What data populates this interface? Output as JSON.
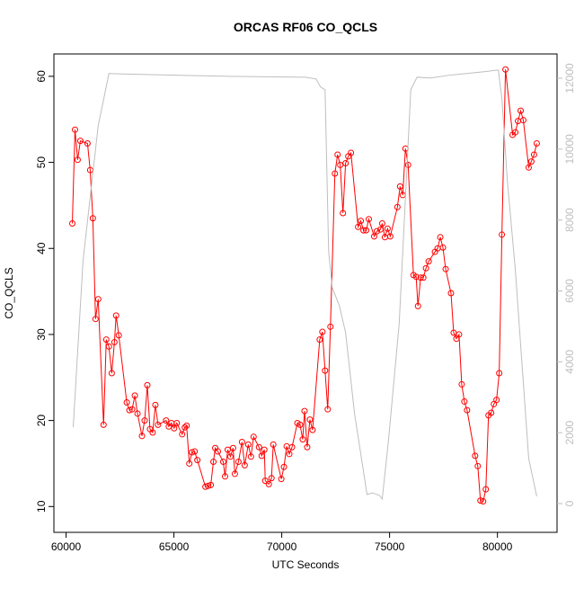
{
  "chart_data": {
    "type": "line",
    "title": "ORCAS RF06 CO_QCLS",
    "x_label": "UTC Seconds",
    "y_label": "CO_QCLS",
    "xlim": [
      59436,
      82764
    ],
    "xticks": [
      60000,
      65000,
      70000,
      75000,
      80000
    ],
    "ylim": [
      7,
      62.6
    ],
    "yticks": [
      10,
      20,
      30,
      40,
      50,
      60
    ],
    "y2lim": [
      -812,
      12685
    ],
    "y2ticks": [
      0,
      2000,
      4000,
      6000,
      8000,
      10000,
      12000
    ],
    "series": [
      {
        "color": "#ff0000",
        "markers": true,
        "axis": "y",
        "x": [
          60290,
          60414,
          60538,
          60662,
          60994,
          61118,
          61242,
          61366,
          61490,
          61739,
          61863,
          61987,
          62118,
          62242,
          62320,
          62443,
          62815,
          62940,
          63064,
          63188,
          63312,
          63519,
          63643,
          63767,
          63891,
          64016,
          64140,
          64264,
          64637,
          64761,
          64885,
          65009,
          65134,
          65382,
          65507,
          65590,
          65714,
          65838,
          65962,
          66087,
          66459,
          66584,
          66708,
          66832,
          66915,
          67039,
          67288,
          67371,
          67495,
          67619,
          67743,
          67826,
          67992,
          68157,
          68282,
          68447,
          68572,
          68696,
          68945,
          69069,
          69193,
          69235,
          69400,
          69524,
          69607,
          69979,
          70103,
          70227,
          70352,
          70476,
          70725,
          70849,
          70973,
          71056,
          71180,
          71305,
          71429,
          71760,
          71884,
          72008,
          72132,
          72257,
          72464,
          72588,
          72712,
          72837,
          72961,
          73085,
          73209,
          73540,
          73665,
          73789,
          73913,
          74037,
          74286,
          74410,
          74575,
          74658,
          74782,
          74907,
          75031,
          75362,
          75486,
          75610,
          75735,
          75859,
          76107,
          76232,
          76315,
          76439,
          76563,
          76687,
          76812,
          77102,
          77226,
          77350,
          77474,
          77599,
          77847,
          77971,
          78095,
          78220,
          78344,
          78468,
          78592,
          78965,
          79089,
          79213,
          79338,
          79462,
          79586,
          79710,
          79834,
          79959,
          80083,
          80207,
          80373,
          80704,
          80829,
          80953,
          81077,
          81201,
          81450,
          81574,
          81698,
          81822
        ],
        "values": [
          42.9,
          53.8,
          50.3,
          52.5,
          52.2,
          49.1,
          43.5,
          31.8,
          34.1,
          19.5,
          29.4,
          28.6,
          25.5,
          29.1,
          32.2,
          29.9,
          22.1,
          21.2,
          21.3,
          22.9,
          20.8,
          18.2,
          20.0,
          24.1,
          19.0,
          18.6,
          21.8,
          19.5,
          20.0,
          19.3,
          19.7,
          19.1,
          19.7,
          18.4,
          19.2,
          19.4,
          15.0,
          16.3,
          16.4,
          15.4,
          12.3,
          12.4,
          12.5,
          15.2,
          16.8,
          16.4,
          15.2,
          13.5,
          16.6,
          15.8,
          16.8,
          13.8,
          15.2,
          17.5,
          14.8,
          17.2,
          15.8,
          18.1,
          16.9,
          15.9,
          16.6,
          13.0,
          12.6,
          13.3,
          17.2,
          13.2,
          14.6,
          17.0,
          16.1,
          16.9,
          19.7,
          19.5,
          17.8,
          21.1,
          16.9,
          20.1,
          18.9,
          29.4,
          30.3,
          25.8,
          21.3,
          30.9,
          48.7,
          50.9,
          49.7,
          44.1,
          49.9,
          50.7,
          51.1,
          42.5,
          43.2,
          42.1,
          42.1,
          43.4,
          41.4,
          42.0,
          42.2,
          42.9,
          41.3,
          42.3,
          41.4,
          44.8,
          47.2,
          46.2,
          51.6,
          49.7,
          36.9,
          36.7,
          33.3,
          36.6,
          36.6,
          37.7,
          38.5,
          39.6,
          40.0,
          41.3,
          40.1,
          37.6,
          34.8,
          30.2,
          29.5,
          30.0,
          24.2,
          22.2,
          21.2,
          15.9,
          14.7,
          10.7,
          10.6,
          12.0,
          20.6,
          20.9,
          21.9,
          22.4,
          25.5,
          41.6,
          60.8,
          53.2,
          53.5,
          54.8,
          56.0,
          54.9,
          49.4,
          50.1,
          50.9,
          52.2
        ]
      },
      {
        "color": "#bebebe",
        "markers": false,
        "axis": "y2",
        "x": [
          60331,
          60787,
          61490,
          61987,
          65300,
          67370,
          71098,
          71594,
          71801,
          72008,
          72174,
          72340,
          72671,
          72961,
          73375,
          73955,
          74203,
          74534,
          74658,
          74948,
          75445,
          75983,
          76273,
          76894,
          77723,
          79379,
          80042,
          80207,
          80456,
          80829,
          81450,
          81822
        ],
        "values": [
          2157,
          6853,
          10660,
          12132,
          12081,
          12056,
          12030,
          11980,
          11751,
          11675,
          7107,
          6091,
          5584,
          4822,
          2538,
          254,
          305,
          228,
          127,
          1777,
          5076,
          11675,
          12030,
          12005,
          12081,
          12183,
          12234,
          11421,
          9137,
          6599,
          1269,
          203
        ]
      }
    ]
  }
}
